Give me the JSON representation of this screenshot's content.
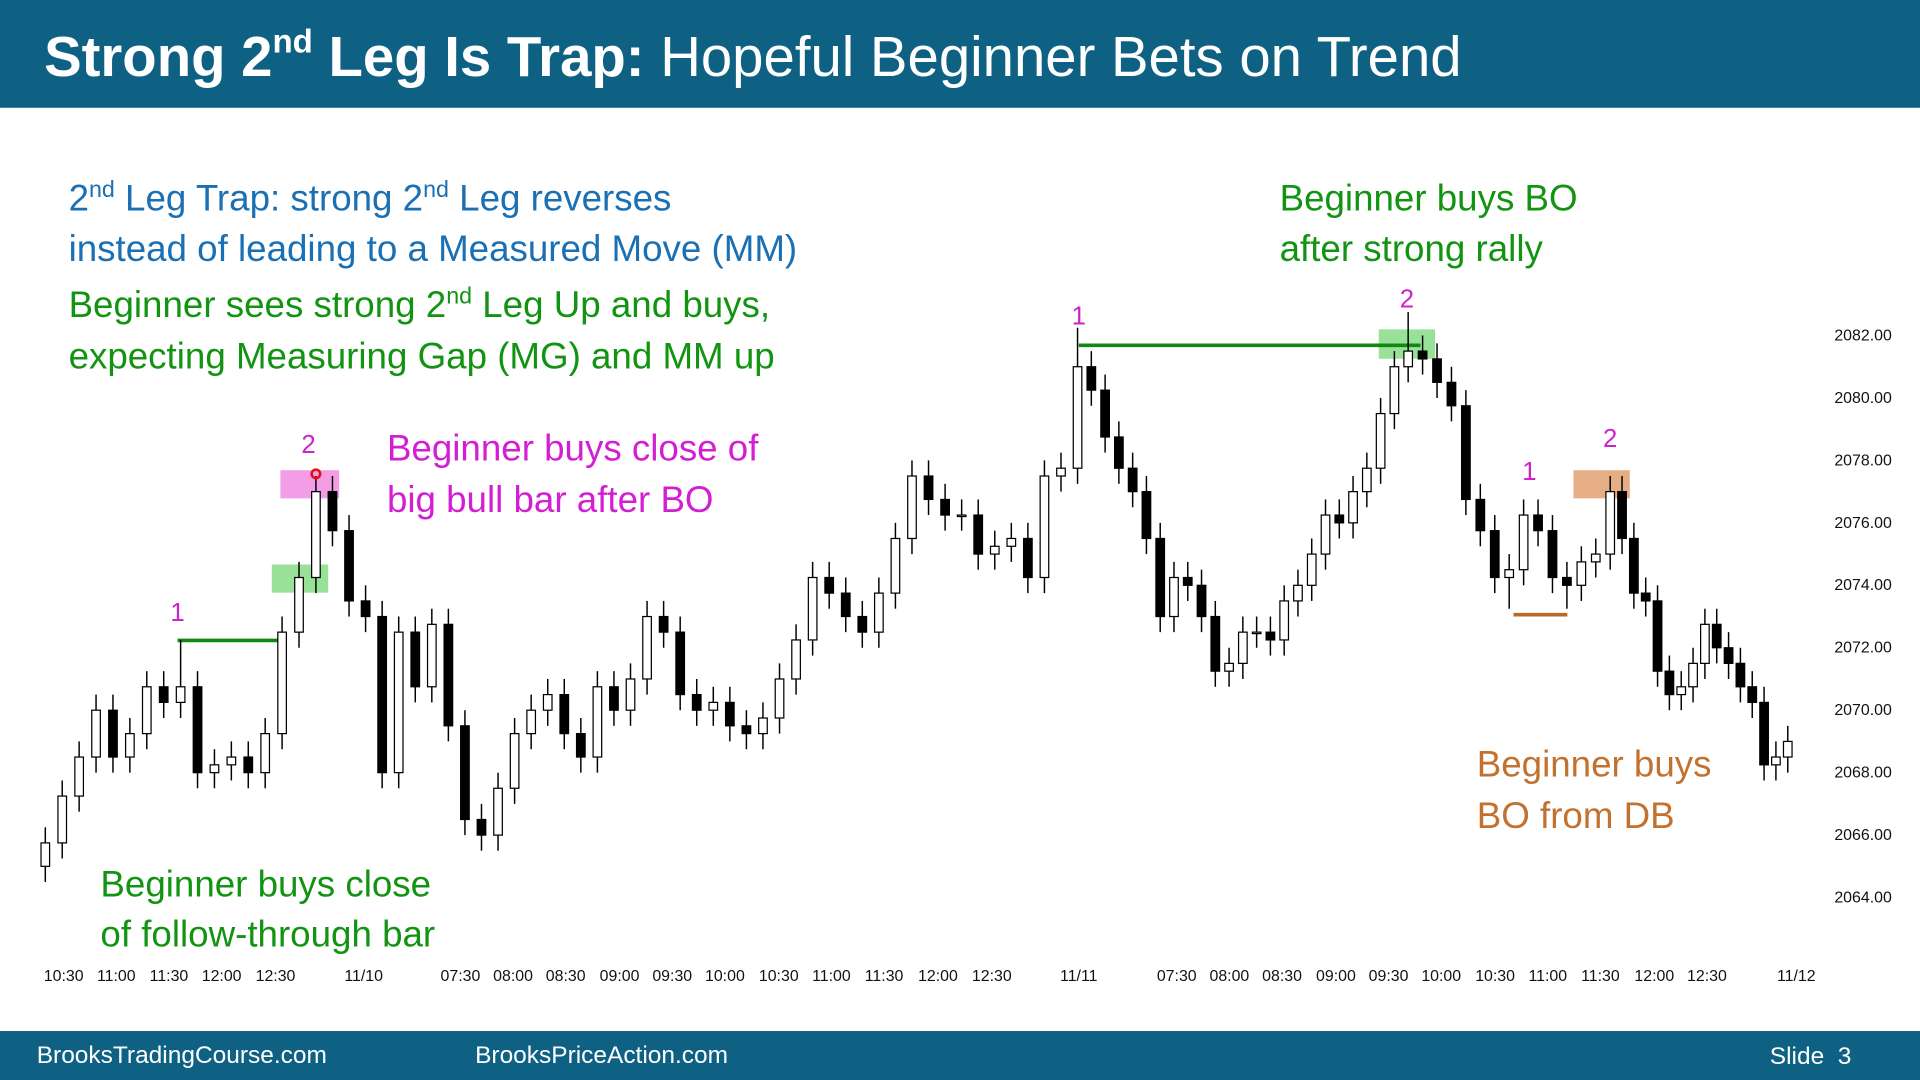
{
  "header": {
    "title_parts": [
      "Strong 2",
      "nd",
      " Leg Is Trap:",
      " Hopeful Beginner Bets on Trend"
    ]
  },
  "chart_data": {
    "type": "candlestick",
    "notes": {
      "trap": [
        [
          "2",
          "nd",
          " Leg Trap: strong 2",
          "nd",
          " Leg reverses"
        ],
        [
          "instead of leading to a Measured Move (MM)"
        ]
      ],
      "beginner_sees": [
        [
          "Beginner sees strong 2",
          "nd",
          " Leg Up and buys,"
        ],
        [
          "expecting Measuring Gap (MG) and MM up"
        ]
      ],
      "big_bull": [
        "Beginner buys close of",
        "big bull bar after BO"
      ],
      "follow_through": [
        "Beginner buys close",
        "of follow-through bar"
      ],
      "rally": [
        "Beginner buys BO",
        "after strong rally"
      ],
      "db": [
        "Beginner buys",
        "BO from DB"
      ]
    },
    "markers": [
      "1",
      "2",
      "1",
      "2",
      "1",
      "2"
    ],
    "open": [
      2065.0,
      2065.75,
      2067.25,
      2068.5,
      2070.0,
      2068.5,
      2069.25,
      2070.75,
      2070.25,
      2070.75,
      2068.0,
      2068.25,
      2068.5,
      2068.0,
      2069.25,
      2072.5,
      2074.25,
      2077.0,
      2075.75,
      2073.5,
      2073.0,
      2068.0,
      2072.5,
      2070.75,
      2072.75,
      2069.5,
      2066.5,
      2066.0,
      2067.5,
      2069.25,
      2070.0,
      2070.5,
      2069.25,
      2068.5,
      2070.75,
      2070.0,
      2071.0,
      2073.0,
      2072.5,
      2070.5,
      2070.0,
      2070.25,
      2069.5,
      2069.25,
      2069.75,
      2071.0,
      2072.25,
      2074.25,
      2073.75,
      2073.0,
      2072.5,
      2073.75,
      2075.5,
      2077.5,
      2076.75,
      2076.25,
      2076.25,
      2075.0,
      2075.25,
      2075.5,
      2074.25,
      2077.5,
      2077.75,
      2081.0,
      2080.25,
      2078.75,
      2077.75,
      2077.0,
      2075.5,
      2073.0,
      2074.25,
      2074.0,
      2073.0,
      2071.25,
      2071.5,
      2072.5,
      2072.5,
      2072.25,
      2073.5,
      2074.0,
      2075.0,
      2076.25,
      2076.0,
      2077.0,
      2077.75,
      2079.5,
      2081.0,
      2081.5,
      2081.25,
      2080.5,
      2079.75,
      2076.75,
      2075.75,
      2074.25,
      2074.5,
      2076.25,
      2075.75,
      2074.25,
      2074.0,
      2074.75,
      2075.0,
      2077.0,
      2075.5,
      2073.75,
      2073.5,
      2071.25,
      2070.5,
      2070.75,
      2071.5,
      2072.75,
      2072.0,
      2071.5,
      2070.75,
      2070.25,
      2068.25,
      2068.5
    ],
    "high": [
      2066.25,
      2067.75,
      2069.0,
      2070.5,
      2070.5,
      2069.75,
      2071.25,
      2071.25,
      2072.25,
      2071.25,
      2068.75,
      2069.0,
      2069.0,
      2069.75,
      2073.0,
      2074.75,
      2077.5,
      2077.5,
      2076.25,
      2074.0,
      2073.5,
      2073.0,
      2073.0,
      2073.25,
      2073.25,
      2070.0,
      2067.0,
      2068.0,
      2069.75,
      2070.5,
      2071.0,
      2071.0,
      2069.75,
      2071.25,
      2071.25,
      2071.5,
      2073.5,
      2073.5,
      2073.0,
      2071.0,
      2070.75,
      2070.75,
      2070.0,
      2070.25,
      2071.5,
      2072.75,
      2074.75,
      2074.75,
      2074.25,
      2073.5,
      2074.25,
      2076.0,
      2078.0,
      2078.0,
      2077.25,
      2076.75,
      2076.75,
      2075.75,
      2076.0,
      2076.0,
      2078.0,
      2078.25,
      2082.25,
      2081.5,
      2080.75,
      2079.25,
      2078.25,
      2077.5,
      2076.0,
      2074.75,
      2074.75,
      2074.5,
      2073.5,
      2072.0,
      2073.0,
      2073.0,
      2073.0,
      2074.0,
      2074.5,
      2075.5,
      2076.75,
      2076.75,
      2077.5,
      2078.25,
      2080.0,
      2081.5,
      2082.75,
      2082.0,
      2081.75,
      2081.0,
      2080.25,
      2077.25,
      2076.25,
      2075.0,
      2076.75,
      2076.75,
      2076.25,
      2074.75,
      2075.25,
      2075.5,
      2077.5,
      2077.5,
      2076.0,
      2074.25,
      2074.0,
      2071.75,
      2071.25,
      2072.0,
      2073.25,
      2073.25,
      2072.5,
      2072.0,
      2071.25,
      2070.75,
      2069.0,
      2069.5
    ],
    "low": [
      2064.5,
      2065.25,
      2066.75,
      2068.0,
      2068.0,
      2068.0,
      2068.75,
      2069.75,
      2069.75,
      2067.5,
      2067.5,
      2067.75,
      2067.5,
      2067.5,
      2068.75,
      2072.0,
      2073.75,
      2075.25,
      2073.0,
      2072.5,
      2067.5,
      2067.5,
      2070.25,
      2070.25,
      2069.0,
      2066.0,
      2065.5,
      2065.5,
      2067.0,
      2068.75,
      2069.5,
      2068.75,
      2068.0,
      2068.0,
      2069.5,
      2069.5,
      2070.5,
      2072.0,
      2070.0,
      2069.5,
      2069.5,
      2069.0,
      2068.75,
      2068.75,
      2069.25,
      2070.5,
      2071.75,
      2073.25,
      2072.5,
      2072.0,
      2072.0,
      2073.25,
      2075.0,
      2076.25,
      2075.75,
      2075.75,
      2074.5,
      2074.5,
      2074.75,
      2073.75,
      2073.75,
      2077.0,
      2077.25,
      2079.75,
      2078.25,
      2077.25,
      2076.5,
      2075.0,
      2072.5,
      2072.5,
      2073.5,
      2072.5,
      2070.75,
      2070.75,
      2071.0,
      2072.0,
      2071.75,
      2071.75,
      2073.0,
      2073.5,
      2074.5,
      2075.5,
      2075.5,
      2076.5,
      2077.25,
      2079.0,
      2080.5,
      2080.75,
      2080.0,
      2079.25,
      2076.25,
      2075.25,
      2073.75,
      2073.25,
      2074.0,
      2075.25,
      2073.75,
      2073.25,
      2073.5,
      2074.25,
      2074.5,
      2075.0,
      2073.25,
      2073.0,
      2070.75,
      2070.0,
      2070.0,
      2070.25,
      2071.0,
      2071.5,
      2071.0,
      2070.25,
      2069.75,
      2067.75,
      2067.75,
      2068.0
    ],
    "close": [
      2065.75,
      2067.25,
      2068.5,
      2070.0,
      2068.5,
      2069.25,
      2070.75,
      2070.25,
      2070.75,
      2068.0,
      2068.25,
      2068.5,
      2068.0,
      2069.25,
      2072.5,
      2074.25,
      2077.0,
      2075.75,
      2073.5,
      2073.0,
      2068.0,
      2072.5,
      2070.75,
      2072.75,
      2069.5,
      2066.5,
      2066.0,
      2067.5,
      2069.25,
      2070.0,
      2070.5,
      2069.25,
      2068.5,
      2070.75,
      2070.0,
      2071.0,
      2073.0,
      2072.5,
      2070.5,
      2070.0,
      2070.25,
      2069.5,
      2069.25,
      2069.75,
      2071.0,
      2072.25,
      2074.25,
      2073.75,
      2073.0,
      2072.5,
      2073.75,
      2075.5,
      2077.5,
      2076.75,
      2076.25,
      2076.25,
      2075.0,
      2075.25,
      2075.5,
      2074.25,
      2077.5,
      2077.75,
      2081.0,
      2080.25,
      2078.75,
      2077.75,
      2077.0,
      2075.5,
      2073.0,
      2074.25,
      2074.0,
      2073.0,
      2071.25,
      2071.5,
      2072.5,
      2072.5,
      2072.25,
      2073.5,
      2074.0,
      2075.0,
      2076.25,
      2076.0,
      2077.0,
      2077.75,
      2079.5,
      2081.0,
      2081.5,
      2081.25,
      2080.5,
      2079.75,
      2076.75,
      2075.75,
      2074.25,
      2074.5,
      2076.25,
      2075.75,
      2074.25,
      2074.0,
      2074.75,
      2075.0,
      2077.0,
      2075.5,
      2073.75,
      2073.5,
      2071.25,
      2070.5,
      2070.75,
      2071.5,
      2072.75,
      2072.0,
      2071.5,
      2070.75,
      2070.25,
      2068.25,
      2068.5,
      2069.0
    ],
    "bull_color": "#ffffff",
    "bear_color": "#000000",
    "ylim": [
      2062,
      2088
    ],
    "yticks": [
      {
        "value": 2064,
        "label": "2064.00"
      },
      {
        "value": 2066,
        "label": "2066.00"
      },
      {
        "value": 2068,
        "label": "2068.00"
      },
      {
        "value": 2070,
        "label": "2070.00"
      },
      {
        "value": 2072,
        "label": "2072.00"
      },
      {
        "value": 2074,
        "label": "2074.00"
      },
      {
        "value": 2076,
        "label": "2076.00"
      },
      {
        "value": 2078,
        "label": "2078.00"
      },
      {
        "value": 2080,
        "label": "2080.00"
      },
      {
        "value": 2082,
        "label": "2082.00"
      }
    ],
    "xtick_labels": [
      "10:30",
      "11:00",
      "11:30",
      "12:00",
      "12:30",
      "11/10",
      "07:30",
      "08:00",
      "08:30",
      "09:00",
      "09:30",
      "10:00",
      "10:30",
      "11:00",
      "11:30",
      "12:00",
      "12:30",
      "11/11",
      "07:30",
      "08:00",
      "08:30",
      "09:00",
      "09:30",
      "10:00",
      "10:30",
      "11:00",
      "11:30",
      "12:00",
      "12:30",
      "11/12"
    ],
    "grid": false
  },
  "footer": {
    "left": "BrooksTradingCourse.com",
    "middle": "BrooksPriceAction.com",
    "slide": "Slide  3"
  }
}
